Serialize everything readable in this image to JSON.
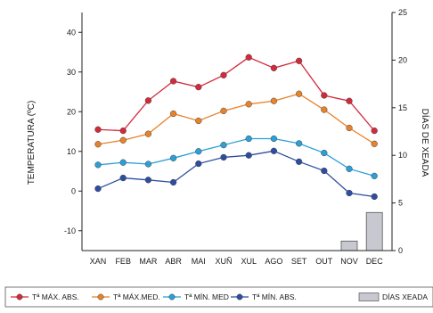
{
  "chart_data": {
    "type": "line",
    "categories": [
      "XAN",
      "FEB",
      "MAR",
      "ABR",
      "MAI",
      "XUÑ",
      "XUL",
      "AGO",
      "SET",
      "OUT",
      "NOV",
      "DEC"
    ],
    "ylabel": "TEMPERATURA (ºC)",
    "y2label": "DÍAS DE XEADA",
    "ylim": [
      -15,
      45
    ],
    "yticks": [
      -10,
      0,
      10,
      20,
      30,
      40
    ],
    "y2lim": [
      0,
      25
    ],
    "y2ticks": [
      0,
      5,
      10,
      15,
      20,
      25
    ],
    "grid": false,
    "legend": "bottom",
    "series": [
      {
        "name": "Tª MÁX. ABS.",
        "type": "line",
        "axis": "left",
        "color": "#d22a3c",
        "values": [
          15.5,
          15.2,
          22.8,
          27.7,
          26.2,
          29.2,
          33.7,
          31.0,
          32.8,
          24.1,
          22.7,
          15.2
        ]
      },
      {
        "name": "Tª MÁX.MED.",
        "type": "line",
        "axis": "left",
        "color": "#e8822a",
        "values": [
          11.8,
          12.8,
          14.4,
          19.5,
          17.7,
          20.2,
          21.9,
          22.7,
          24.5,
          20.5,
          15.9,
          11.9
        ]
      },
      {
        "name": "Tª MÍN. MED",
        "type": "line",
        "axis": "left",
        "color": "#2a9fd8",
        "values": [
          6.6,
          7.2,
          6.8,
          8.3,
          10.0,
          11.6,
          13.2,
          13.2,
          12.0,
          9.6,
          5.6,
          3.8
        ]
      },
      {
        "name": "Tª MÍN. ABS.",
        "type": "line",
        "axis": "left",
        "color": "#2d4da0",
        "values": [
          0.6,
          3.3,
          2.8,
          2.2,
          6.9,
          8.5,
          9.0,
          10.1,
          7.4,
          5.1,
          -0.5,
          -1.4
        ]
      },
      {
        "name": "DÍAS XEADA",
        "type": "bar",
        "axis": "right",
        "color": "#c8c8d0",
        "values": [
          0,
          0,
          0,
          0,
          0,
          0,
          0,
          0,
          0,
          0,
          1,
          4
        ]
      }
    ]
  }
}
